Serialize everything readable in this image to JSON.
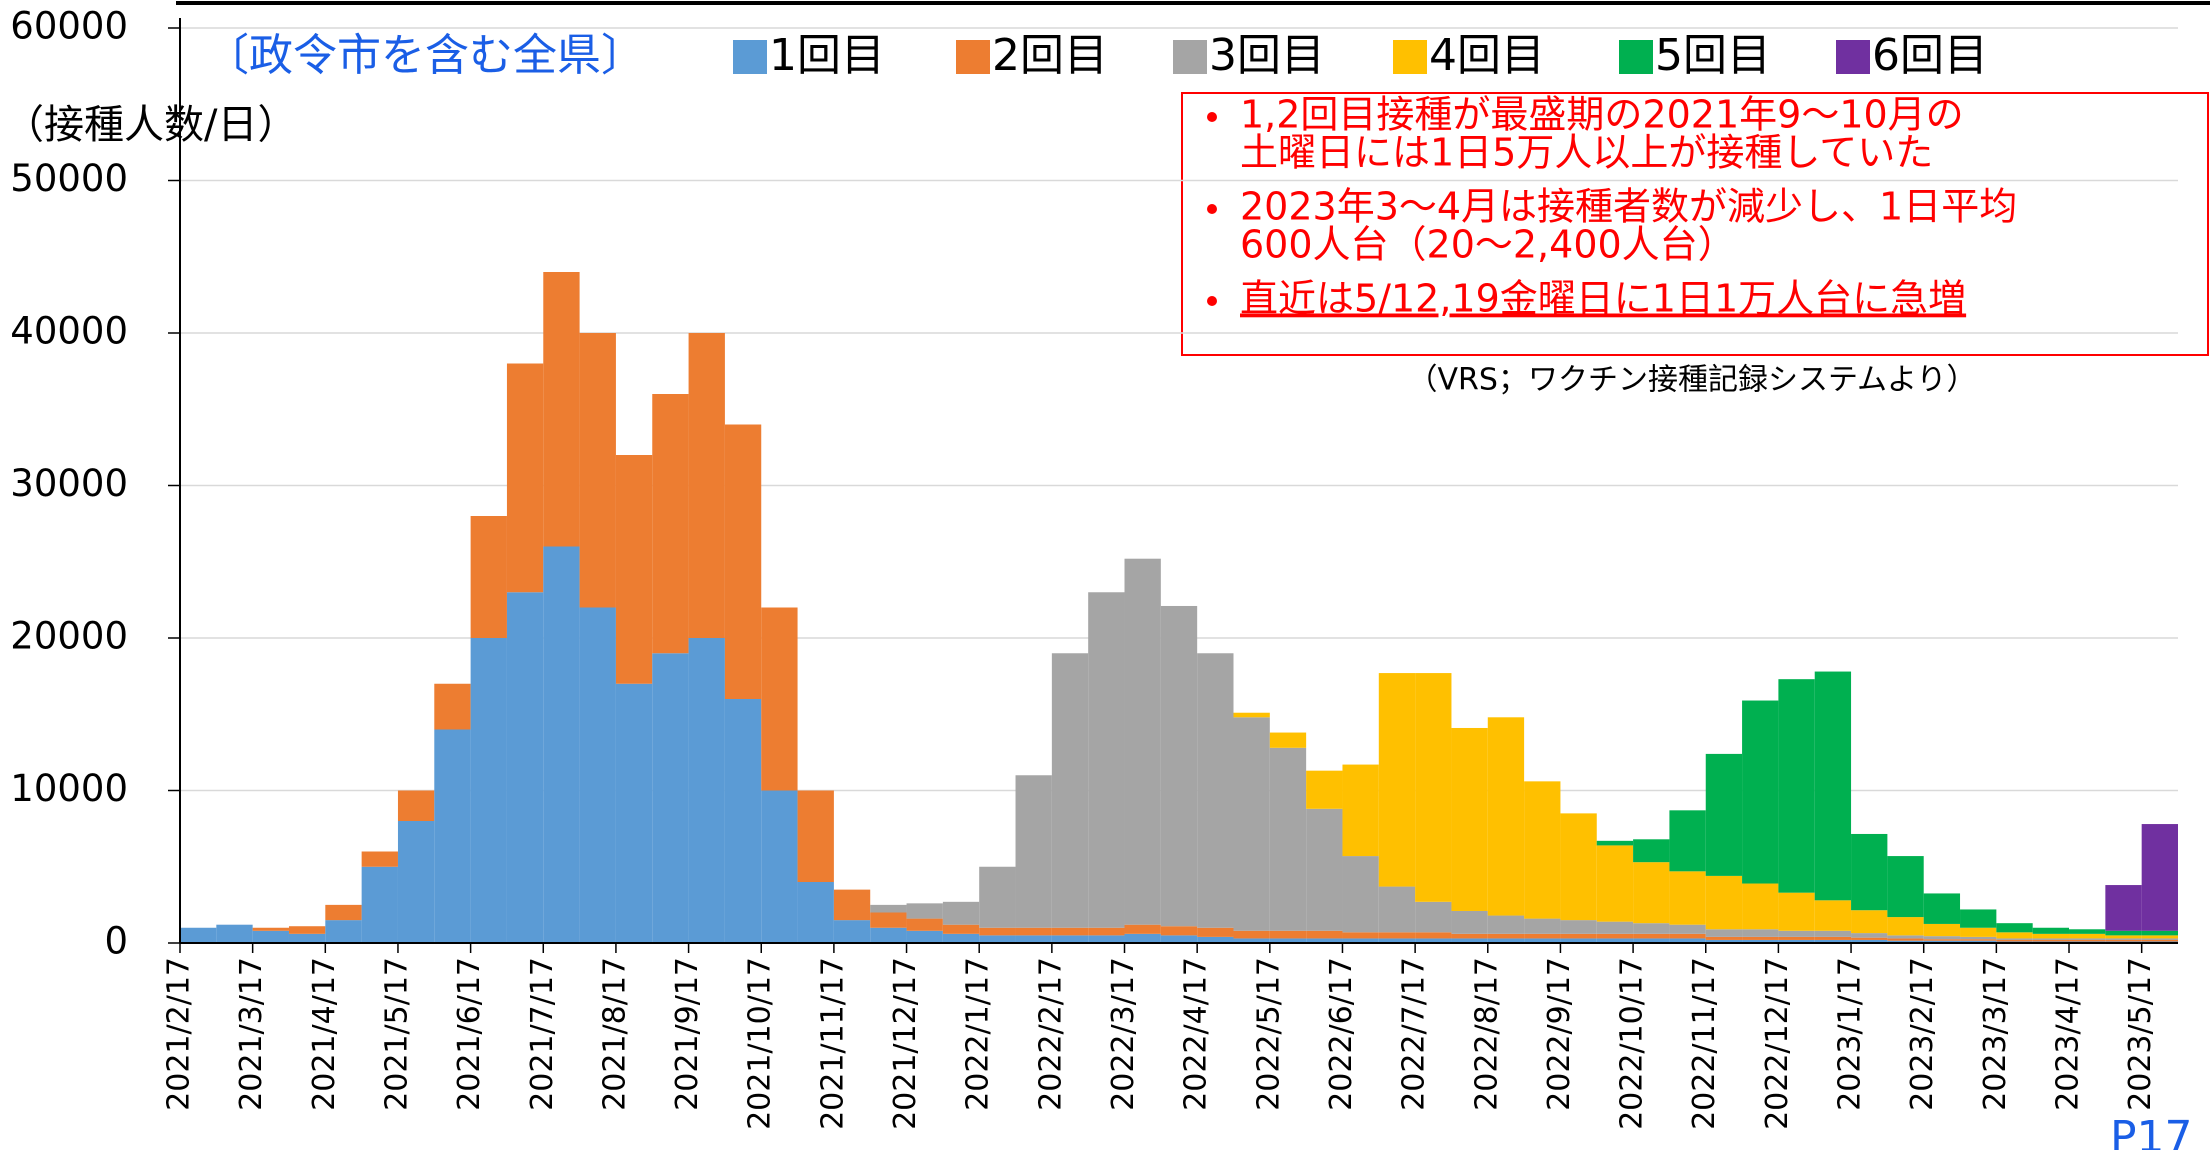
{
  "chart_data": {
    "type": "bar",
    "stacked": true,
    "title": "〔政令市を含む全県〕",
    "y_label": "（接種人数/日）",
    "source": "（VRS；ワクチン接種記録システムより）",
    "page_number": "P17",
    "notes": [
      [
        "1,2回目接種が最盛期の2021年9～10月の",
        "土曜日には1日5万人以上が接種していた"
      ],
      [
        "2023年3～4月は接種者数が減少し、1日平均",
        "600人台（20～2,400人台）"
      ],
      [
        "直近は5/12,19金曜日に1日1万人台に急増"
      ]
    ],
    "categories": [
      "2021/2/17",
      null,
      "2021/3/17",
      null,
      "2021/4/17",
      null,
      "2021/5/17",
      null,
      "2021/6/17",
      null,
      "2021/7/17",
      null,
      "2021/8/17",
      null,
      "2021/9/17",
      null,
      "2021/10/17",
      null,
      "2021/11/17",
      null,
      "2021/12/17",
      null,
      "2022/1/17",
      null,
      "2022/2/17",
      null,
      "2022/3/17",
      null,
      "2022/4/17",
      null,
      "2022/5/17",
      null,
      "2022/6/17",
      null,
      "2022/7/17",
      null,
      "2022/8/17",
      null,
      "2022/9/17",
      null,
      "2022/10/17",
      null,
      "2022/11/17",
      null,
      "2022/12/17",
      null,
      "2023/1/17",
      null,
      "2023/2/17",
      null,
      "2023/3/17",
      null,
      "2023/4/17",
      null,
      "2023/5/17"
    ],
    "series": [
      {
        "name": "1回目",
        "color": "#5b9bd5",
        "values": [
          1000,
          1200,
          800,
          600,
          1500,
          5000,
          8000,
          14000,
          20000,
          23000,
          26000,
          22000,
          17000,
          19000,
          20000,
          16000,
          10000,
          4000,
          1500,
          1000,
          800,
          600,
          500,
          500,
          500,
          500,
          600,
          500,
          400,
          300,
          300,
          300,
          300,
          300,
          300,
          300,
          300,
          300,
          300,
          300,
          300,
          300,
          200,
          200,
          200,
          200,
          200,
          150,
          150,
          150,
          100,
          100,
          100,
          100,
          100
        ]
      },
      {
        "name": "2回目",
        "color": "#ed7d31",
        "values": [
          0,
          0,
          200,
          500,
          1000,
          1000,
          2000,
          3000,
          8000,
          15000,
          18000,
          18000,
          15000,
          17000,
          20000,
          18000,
          12000,
          6000,
          2000,
          1000,
          800,
          600,
          500,
          500,
          500,
          500,
          600,
          600,
          600,
          500,
          500,
          500,
          400,
          400,
          400,
          300,
          300,
          300,
          300,
          300,
          300,
          300,
          200,
          200,
          200,
          200,
          150,
          150,
          100,
          100,
          100,
          100,
          100,
          100,
          100
        ]
      },
      {
        "name": "3回目",
        "color": "#a5a5a5",
        "values": [
          0,
          0,
          0,
          0,
          0,
          0,
          0,
          0,
          0,
          0,
          0,
          0,
          0,
          0,
          0,
          0,
          0,
          0,
          0,
          500,
          1000,
          1500,
          4000,
          10000,
          18000,
          22000,
          24000,
          21000,
          18000,
          14000,
          12000,
          8000,
          5000,
          3000,
          2000,
          1500,
          1200,
          1000,
          900,
          800,
          700,
          600,
          500,
          500,
          400,
          400,
          300,
          200,
          200,
          150,
          100,
          100,
          100,
          100,
          100
        ]
      },
      {
        "name": "4回目",
        "color": "#ffc000",
        "values": [
          0,
          0,
          0,
          0,
          0,
          0,
          0,
          0,
          0,
          0,
          0,
          0,
          0,
          0,
          0,
          0,
          0,
          0,
          0,
          0,
          0,
          0,
          0,
          0,
          0,
          0,
          0,
          0,
          0,
          300,
          1000,
          2500,
          6000,
          14000,
          15000,
          12000,
          13000,
          9000,
          7000,
          5000,
          4000,
          3500,
          3500,
          3000,
          2500,
          2000,
          1500,
          1200,
          800,
          600,
          400,
          300,
          300,
          200,
          200
        ]
      },
      {
        "name": "5回目",
        "color": "#00b050",
        "values": [
          0,
          0,
          0,
          0,
          0,
          0,
          0,
          0,
          0,
          0,
          0,
          0,
          0,
          0,
          0,
          0,
          0,
          0,
          0,
          0,
          0,
          0,
          0,
          0,
          0,
          0,
          0,
          0,
          0,
          0,
          0,
          0,
          0,
          0,
          0,
          0,
          0,
          0,
          0,
          300,
          1500,
          4000,
          8000,
          12000,
          14000,
          15000,
          5000,
          4000,
          2000,
          1200,
          600,
          400,
          300,
          300,
          300
        ]
      },
      {
        "name": "6回目",
        "color": "#7030a0",
        "values": [
          0,
          0,
          0,
          0,
          0,
          0,
          0,
          0,
          0,
          0,
          0,
          0,
          0,
          0,
          0,
          0,
          0,
          0,
          0,
          0,
          0,
          0,
          0,
          0,
          0,
          0,
          0,
          0,
          0,
          0,
          0,
          0,
          0,
          0,
          0,
          0,
          0,
          0,
          0,
          0,
          0,
          0,
          0,
          0,
          0,
          0,
          0,
          0,
          0,
          0,
          0,
          0,
          0,
          3000,
          7000
        ]
      }
    ],
    "ylim": [
      0,
      60000
    ],
    "yticks": [
      0,
      10000,
      20000,
      30000,
      40000,
      50000,
      60000
    ],
    "grid": true
  }
}
